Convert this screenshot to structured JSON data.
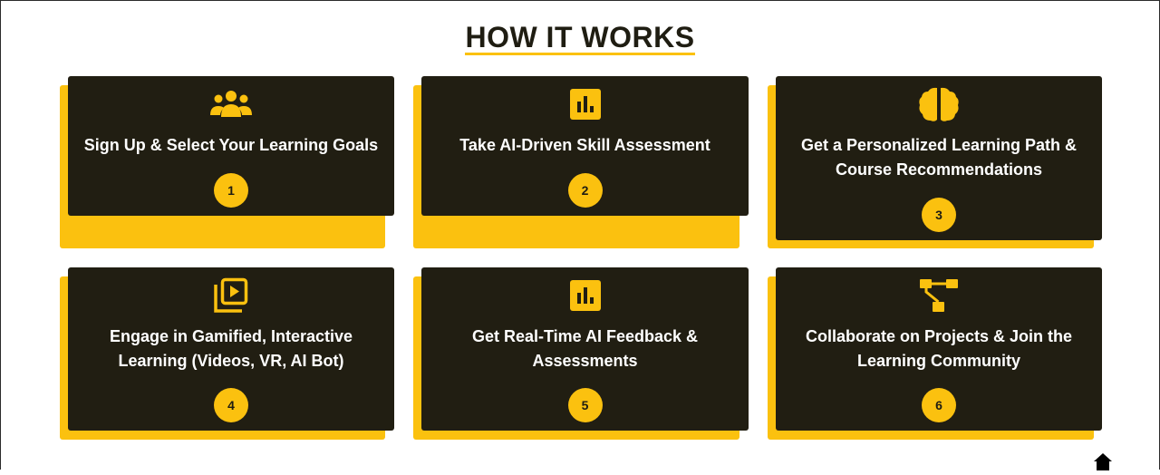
{
  "section": {
    "title": "HOW IT WORKS"
  },
  "colors": {
    "accent": "#fbc10f",
    "card_bg": "#211e12",
    "text_on_card": "#ffffff"
  },
  "steps": [
    {
      "icon": "users-icon",
      "label": "Sign Up & Select Your Learning Goals",
      "number": "1"
    },
    {
      "icon": "bar-chart-icon",
      "label": "Take AI-Driven Skill Assessment",
      "number": "2"
    },
    {
      "icon": "brain-icon",
      "label": "Get a Personalized Learning Path & Course Recommendations",
      "number": "3"
    },
    {
      "icon": "video-library-icon",
      "label": "Engage in Gamified, Interactive Learning (Videos, VR, AI Bot)",
      "number": "4"
    },
    {
      "icon": "bar-chart-icon",
      "label": "Get Real-Time AI Feedback & Assessments",
      "number": "5"
    },
    {
      "icon": "workflow-icon",
      "label": "Collaborate on Projects & Join the Learning Community",
      "number": "6"
    }
  ],
  "footer": {
    "icon": "home-icon"
  }
}
